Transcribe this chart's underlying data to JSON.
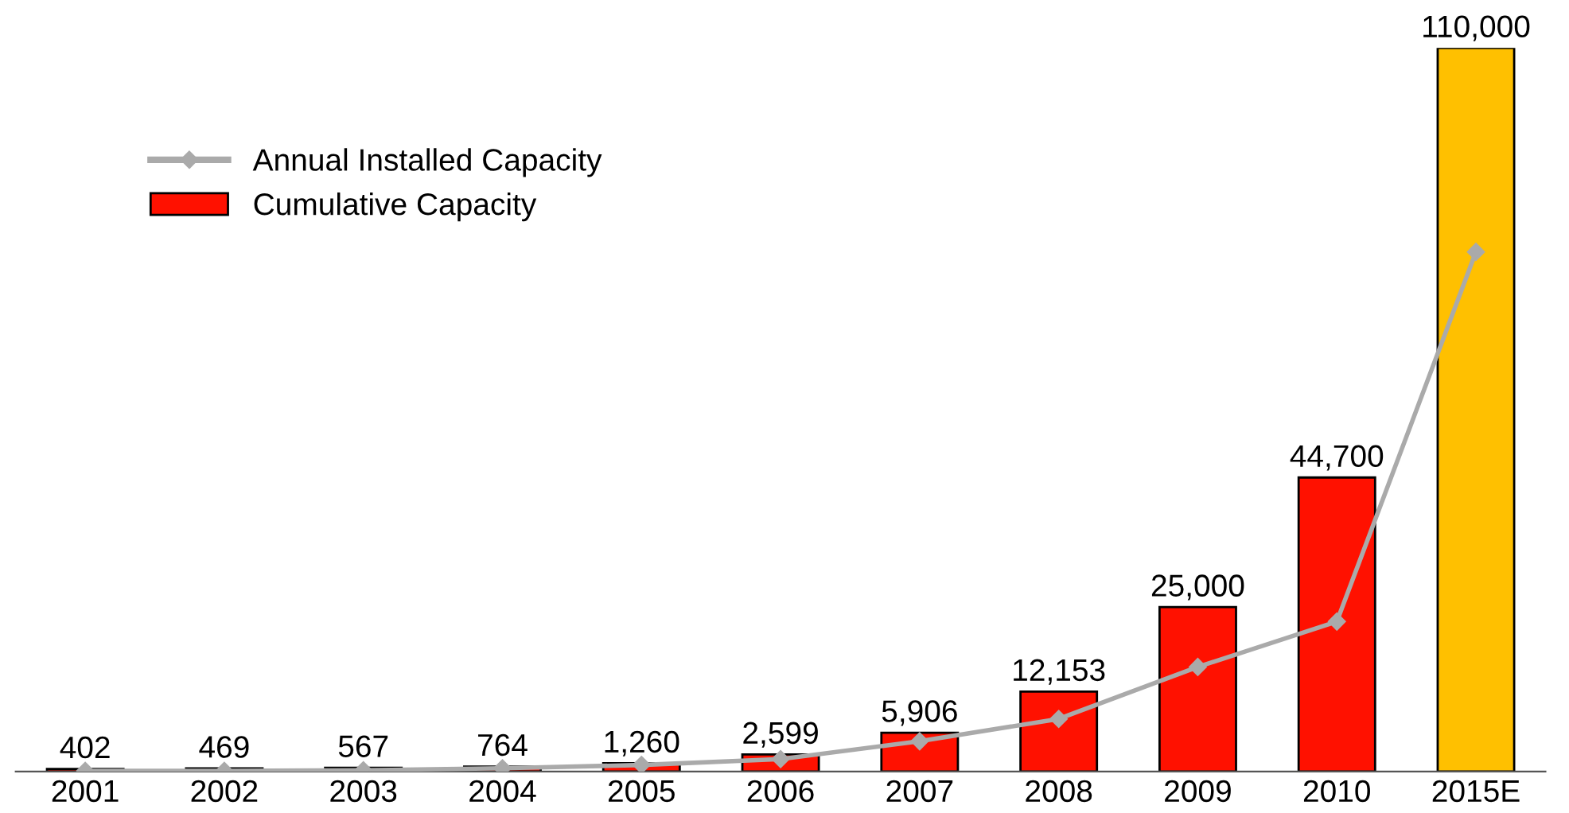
{
  "chart_data": {
    "type": "bar",
    "categories": [
      "2001",
      "2002",
      "2003",
      "2004",
      "2005",
      "2006",
      "2007",
      "2008",
      "2009",
      "2010",
      "2015E"
    ],
    "series": [
      {
        "name": "Cumulative Capacity",
        "color": "#ff1100",
        "colors": [
          "#ff1100",
          "#ff1100",
          "#ff1100",
          "#ff1100",
          "#ff1100",
          "#ff1100",
          "#ff1100",
          "#ff1100",
          "#ff1100",
          "#ff1100",
          "#ffc000"
        ],
        "values": [
          402,
          469,
          567,
          764,
          1260,
          2599,
          5906,
          12153,
          25000,
          44700,
          110000
        ],
        "value_labels": [
          "402",
          "469",
          "567",
          "764",
          "1,260",
          "2,599",
          "5,906",
          "12,153",
          "25,000",
          "44,700",
          "110,000"
        ]
      },
      {
        "name": "Annual Installed Capacity",
        "type": "line",
        "color": "#aaaaaa",
        "marker": "diamond",
        "line_style": "solid",
        "values": [
          100,
          100,
          200,
          500,
          1000,
          1900,
          4600,
          8000,
          15900,
          22800,
          79000
        ]
      }
    ],
    "ylim": [
      0,
      110000
    ],
    "tick_labels": "x",
    "legend": "top left",
    "grid": false
  }
}
